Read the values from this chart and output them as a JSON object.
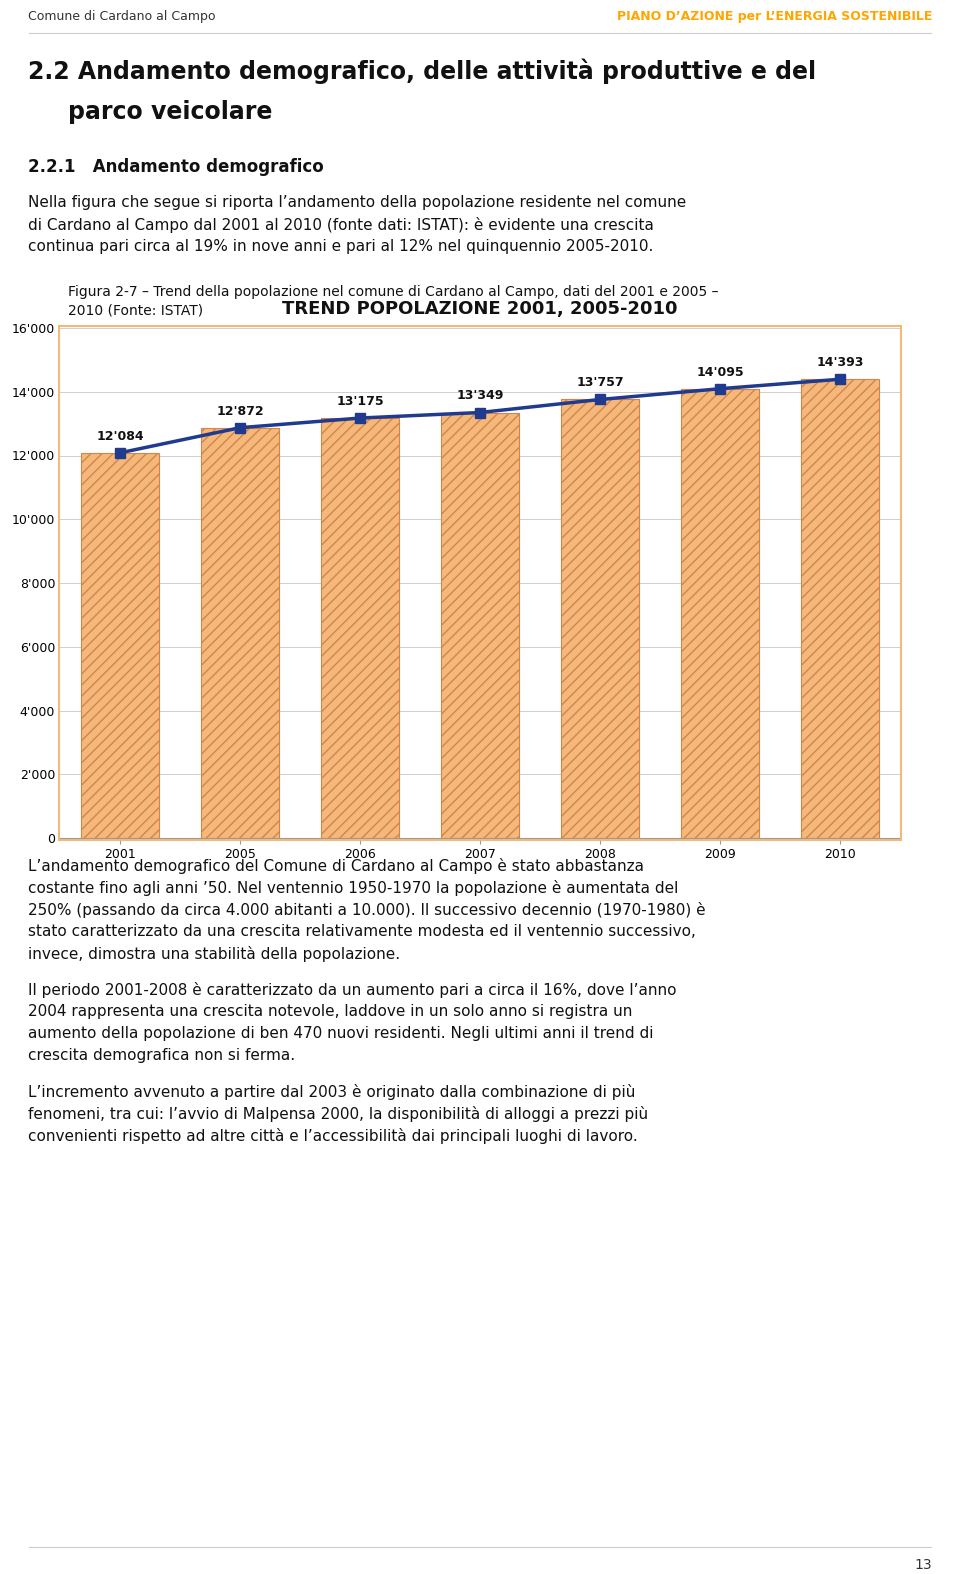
{
  "page_bg": "#ffffff",
  "header_left": "Comune di Cardano al Campo",
  "header_right": "PIANO D’AZIONE per L’ENERGIA SOSTENIBILE",
  "header_right_color": "#FFA500",
  "chart_title": "TREND POPOLAZIONE 2001, 2005-2010",
  "years": [
    2001,
    2005,
    2006,
    2007,
    2008,
    2009,
    2010
  ],
  "values": [
    12084,
    12872,
    13175,
    13349,
    13757,
    14095,
    14393
  ],
  "value_labels": [
    "12'084",
    "12'872",
    "13'175",
    "13'349",
    "13'757",
    "14'095",
    "14'393"
  ],
  "ylim": [
    0,
    16000
  ],
  "yticks": [
    0,
    2000,
    4000,
    6000,
    8000,
    10000,
    12000,
    14000,
    16000
  ],
  "ytick_labels": [
    "0",
    "2'000",
    "4'000",
    "6'000",
    "8'000",
    "10'000",
    "12'000",
    "14'000",
    "16'000"
  ],
  "line_color": "#1F3A8F",
  "line_width": 2.5,
  "marker": "s",
  "marker_color": "#1F3A8F",
  "marker_size": 7,
  "bar_fill_color": "#F4B97A",
  "bar_hatch": "///",
  "bar_edge_color": "#D4834A",
  "chart_border_color": "#F4B97A",
  "chart_bg": "#ffffff",
  "grid_color": "#BBBBBB",
  "grid_linewidth": 0.5,
  "label_fontsize": 9,
  "value_label_fontsize": 9,
  "chart_title_fontsize": 13,
  "footer_page": "13"
}
